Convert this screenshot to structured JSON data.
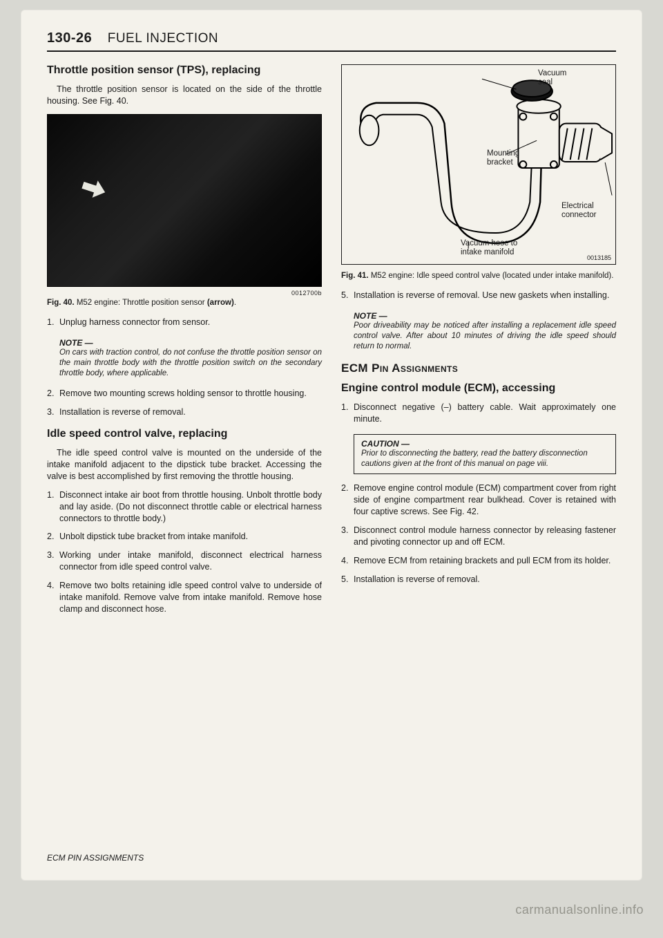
{
  "header": {
    "page_number": "130-26",
    "chapter_title": "FUEL INJECTION"
  },
  "left": {
    "section1_title": "Throttle position sensor (TPS), replacing",
    "section1_intro": "The throttle position sensor is located on the side of the throttle housing. See Fig. 40.",
    "photo_id": "0012700b",
    "fig40_label": "Fig. 40.",
    "fig40_text": " M52 engine: Throttle position sensor ",
    "fig40_bold": "(arrow)",
    "fig40_end": ".",
    "step1": "Unplug harness connector from sensor.",
    "note1_label": "NOTE —",
    "note1_text": "On cars with traction control, do not confuse the throttle position sensor on the main throttle body with the throttle position switch on the secondary throttle body, where applicable.",
    "step2": "Remove two mounting screws holding sensor to throttle housing.",
    "step3": "Installation is reverse of removal.",
    "section2_title": "Idle speed control valve, replacing",
    "section2_intro": "The idle speed control valve is mounted on the underside of the intake manifold adjacent to the dipstick tube bracket. Accessing the valve is best accomplished by first removing the throttle housing.",
    "s2_step1": "Disconnect intake air boot from throttle housing. Unbolt throttle body and lay aside. (Do not disconnect throttle cable or electrical harness connectors to throttle body.)",
    "s2_step2": "Unbolt dipstick tube bracket from intake manifold.",
    "s2_step3": "Working under intake manifold, disconnect electrical harness connector from idle speed control valve.",
    "s2_step4": "Remove two bolts retaining idle speed control valve to underside of intake manifold. Remove valve from intake manifold. Remove hose clamp and disconnect hose."
  },
  "right": {
    "diag_labels": {
      "vacuum_seal": "Vacuum\nseal",
      "mounting_bracket": "Mounting\nbracket",
      "electrical_connector": "Electrical\nconnector",
      "vacuum_hose": "Vacuum hose to\nintake manifold"
    },
    "diagram_id": "0013185",
    "fig41_label": "Fig. 41.",
    "fig41_text": " M52 engine: Idle speed control valve (located under intake manifold).",
    "step5": "Installation is reverse of removal. Use new gaskets when installing.",
    "note2_label": "NOTE —",
    "note2_text": "Poor driveability may be noticed after installing a replacement idle speed control valve. After about 10 minutes of driving the idle speed should return to normal.",
    "ecm_heading_pre": "ECM ",
    "ecm_heading_sc": "Pin Assignments",
    "section3_title": "Engine control module (ECM), accessing",
    "s3_step1": "Disconnect negative (–) battery cable. Wait approximately one minute.",
    "caution_label": "CAUTION —",
    "caution_text": "Prior to disconnecting the battery, read the battery disconnection cautions given at the front of this manual on page viii.",
    "s3_step2": "Remove engine control module (ECM) compartment cover from right side of engine compartment rear bulkhead. Cover is retained with four captive screws. See Fig. 42.",
    "s3_step3": "Disconnect control module harness connector by releasing fastener and pivoting connector up and off ECM.",
    "s3_step4": "Remove ECM from retaining brackets and pull ECM from its holder.",
    "s3_step5": "Installation is reverse of removal."
  },
  "footer": "ECM PIN ASSIGNMENTS",
  "watermark": "carmanualsonline.info"
}
